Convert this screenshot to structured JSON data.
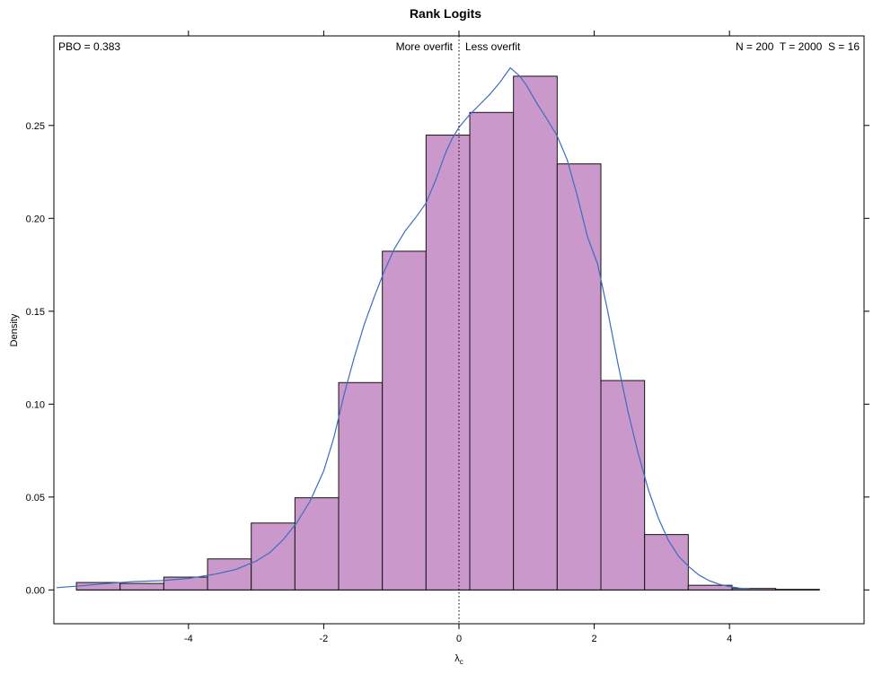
{
  "title": "Rank Logits",
  "annotations": {
    "pbo": "PBO = 0.383",
    "more_overfit": "More overfit",
    "less_overfit": "Less overfit",
    "params": "N = 200  T = 2000  S = 16"
  },
  "axes": {
    "ylabel": "Density",
    "xlabel_symbol": "λ",
    "xlabel_subscript": "c"
  },
  "chart_data": {
    "type": "bar",
    "subtype": "histogram_with_density_overlay",
    "title": "Rank Logits",
    "xlabel": "λc",
    "ylabel": "Density",
    "xlim": [
      -5.99,
      5.99
    ],
    "ylim": [
      -0.0182,
      0.2982
    ],
    "x_ticks": [
      -4,
      -2,
      0,
      2,
      4
    ],
    "y_ticks": [
      0,
      0.05,
      0.1,
      0.15,
      0.2,
      0.25
    ],
    "y_tick_labels": [
      "0.00",
      "0.05",
      "0.10",
      "0.15",
      "0.20",
      "0.25"
    ],
    "grid": false,
    "legend": "none",
    "histogram": {
      "bin_start": -5.657,
      "bin_width": 0.6463,
      "densities": [
        0.004,
        0.0035,
        0.0069,
        0.0167,
        0.036,
        0.0496,
        0.1116,
        0.1823,
        0.2448,
        0.257,
        0.2765,
        0.2293,
        0.1127,
        0.0298,
        0.0025,
        0.0008,
        0.0003
      ]
    },
    "density_curve": [
      [
        -5.95,
        0.0012
      ],
      [
        -5.6,
        0.0022
      ],
      [
        -5.2,
        0.0035
      ],
      [
        -4.8,
        0.0045
      ],
      [
        -4.4,
        0.005
      ],
      [
        -4.0,
        0.0062
      ],
      [
        -3.6,
        0.0085
      ],
      [
        -3.3,
        0.011
      ],
      [
        -3.0,
        0.0155
      ],
      [
        -2.8,
        0.02
      ],
      [
        -2.6,
        0.027
      ],
      [
        -2.4,
        0.036
      ],
      [
        -2.2,
        0.048
      ],
      [
        -2.0,
        0.064
      ],
      [
        -1.85,
        0.082
      ],
      [
        -1.7,
        0.105
      ],
      [
        -1.55,
        0.125
      ],
      [
        -1.4,
        0.143
      ],
      [
        -1.25,
        0.158
      ],
      [
        -1.1,
        0.172
      ],
      [
        -0.95,
        0.184
      ],
      [
        -0.8,
        0.193
      ],
      [
        -0.65,
        0.2
      ],
      [
        -0.49,
        0.208
      ],
      [
        -0.35,
        0.22
      ],
      [
        -0.2,
        0.235
      ],
      [
        -0.1,
        0.243
      ],
      [
        0,
        0.249
      ],
      [
        0.15,
        0.2555
      ],
      [
        0.3,
        0.261
      ],
      [
        0.45,
        0.2665
      ],
      [
        0.6,
        0.273
      ],
      [
        0.76,
        0.281
      ],
      [
        0.9,
        0.2765
      ],
      [
        1.0,
        0.2715
      ],
      [
        1.15,
        0.262
      ],
      [
        1.3,
        0.2535
      ],
      [
        1.45,
        0.2445
      ],
      [
        1.6,
        0.2315
      ],
      [
        1.75,
        0.212
      ],
      [
        1.9,
        0.19
      ],
      [
        2.05,
        0.1755
      ],
      [
        2.2,
        0.15
      ],
      [
        2.35,
        0.122
      ],
      [
        2.5,
        0.096
      ],
      [
        2.65,
        0.0735
      ],
      [
        2.8,
        0.054
      ],
      [
        2.95,
        0.0385
      ],
      [
        3.1,
        0.0265
      ],
      [
        3.25,
        0.018
      ],
      [
        3.4,
        0.0125
      ],
      [
        3.55,
        0.008
      ],
      [
        3.7,
        0.005
      ],
      [
        3.85,
        0.003
      ],
      [
        4.0,
        0.0018
      ],
      [
        4.15,
        0.001
      ],
      [
        4.3,
        0.0006
      ]
    ],
    "reference_vline_x": 0,
    "colors": {
      "bar_fill": "#CB98CB",
      "bar_stroke": "#141414",
      "curve": "#3C6CC0",
      "vline": "#000000",
      "box": "#000000"
    }
  }
}
